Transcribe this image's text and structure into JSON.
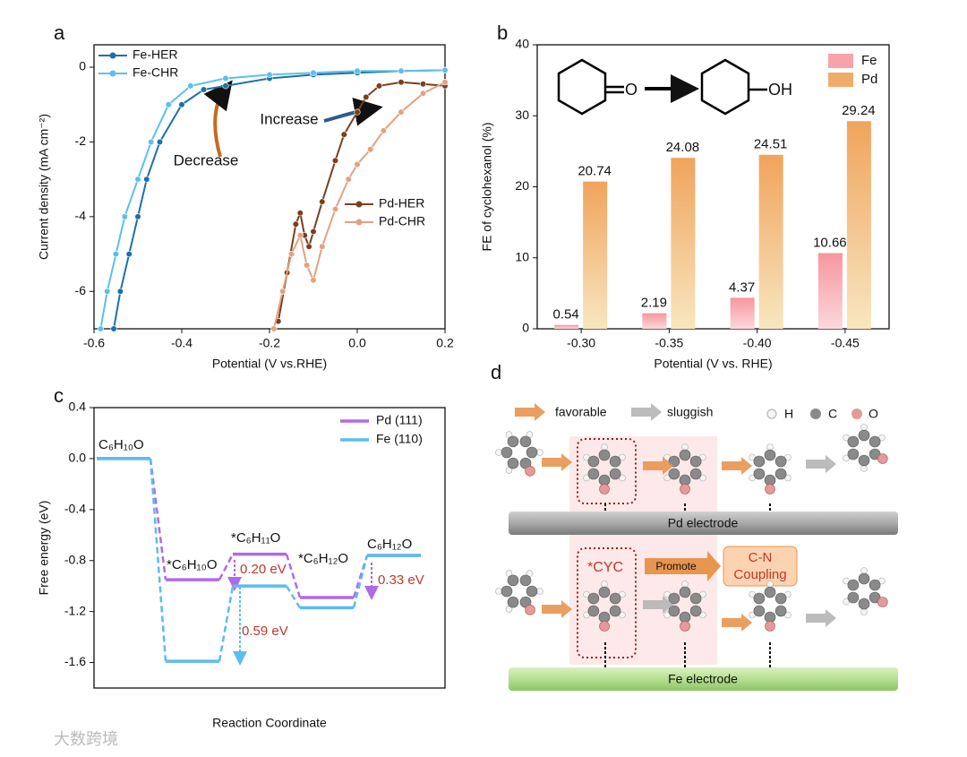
{
  "chart_data": [
    {
      "panel": "a",
      "type": "line",
      "xlabel": "Potential (V vs.RHE)",
      "ylabel": "Current density (mA cm⁻²)",
      "xlim": [
        -0.6,
        0.2
      ],
      "ylim": [
        -7,
        0.6
      ],
      "xticks": [
        -0.6,
        -0.4,
        -0.2,
        {
          "value": 0,
          "label": "0.0"
        },
        0.2
      ],
      "yticks": [
        0,
        -2,
        -4,
        -6
      ],
      "annotations": [
        "Decrease",
        "Increase"
      ],
      "series": [
        {
          "name": "Fe-HER",
          "color": "#1f6fa8",
          "x": [
            -0.555,
            -0.54,
            -0.52,
            -0.5,
            -0.48,
            -0.45,
            -0.4,
            -0.35,
            -0.3,
            -0.2,
            -0.1,
            0,
            0.1,
            0.2
          ],
          "values": [
            -7,
            -6,
            -5,
            -4,
            -3,
            -2,
            -1,
            -0.6,
            -0.5,
            -0.3,
            -0.2,
            -0.15,
            -0.1,
            -0.08
          ]
        },
        {
          "name": "Fe-CHR",
          "color": "#5bc0eb",
          "x": [
            -0.585,
            -0.57,
            -0.55,
            -0.53,
            -0.5,
            -0.47,
            -0.43,
            -0.38,
            -0.3,
            -0.2,
            -0.1,
            0,
            0.1,
            0.2
          ],
          "values": [
            -7,
            -6,
            -5,
            -4,
            -3,
            -2,
            -1,
            -0.5,
            -0.3,
            -0.2,
            -0.15,
            -0.1,
            -0.1,
            -0.08
          ]
        },
        {
          "name": "Pd-HER",
          "color": "#7a3f1e",
          "x": [
            -0.18,
            -0.16,
            -0.14,
            -0.13,
            -0.12,
            -0.11,
            -0.1,
            -0.08,
            -0.05,
            -0.03,
            0,
            0.02,
            0.05,
            0.1,
            0.15,
            0.2
          ],
          "values": [
            -6.8,
            -5.5,
            -4.2,
            -3.9,
            -4.5,
            -4.8,
            -4.4,
            -3.6,
            -2.5,
            -1.8,
            -1.2,
            -0.8,
            -0.5,
            -0.4,
            -0.45,
            -0.5
          ]
        },
        {
          "name": "Pd-CHR",
          "color": "#e3a27f",
          "x": [
            -0.19,
            -0.17,
            -0.15,
            -0.13,
            -0.115,
            -0.1,
            -0.08,
            -0.05,
            -0.02,
            0,
            0.03,
            0.06,
            0.1,
            0.15,
            0.2
          ],
          "values": [
            -7,
            -6,
            -5,
            -4.5,
            -5.3,
            -5.7,
            -4.8,
            -3.8,
            -3,
            -2.6,
            -2.2,
            -1.7,
            -1.2,
            -0.7,
            -0.4
          ]
        }
      ]
    },
    {
      "panel": "b",
      "type": "bar",
      "xlabel": "Potential (V vs. RHE)",
      "ylabel": "FE of cyclohexanol (%)",
      "categories": [
        "-0.30",
        "-0.35",
        "-0.40",
        "-0.45"
      ],
      "ylim": [
        0,
        40
      ],
      "yticks": [
        0,
        10,
        20,
        30,
        40
      ],
      "scheme": [
        "O",
        "OH"
      ],
      "series": [
        {
          "name": "Fe",
          "color": "#f7a3aa",
          "values": [
            0.54,
            2.19,
            4.37,
            10.66
          ]
        },
        {
          "name": "Pd",
          "color": "#f0ad6a",
          "values": [
            20.74,
            24.08,
            24.51,
            29.24
          ]
        }
      ]
    },
    {
      "panel": "c",
      "type": "step",
      "xlabel": "Reaction Coordinate",
      "ylabel": "Free energy (eV)",
      "ylim": [
        -1.8,
        0.4
      ],
      "yticks": [
        0.4,
        {
          "value": 0,
          "label": "0.0"
        },
        -0.4,
        -0.8,
        -1.2,
        -1.6
      ],
      "categories": [
        "C₆H₁₀O",
        "*C₆H₁₀O",
        "*C₆H₁₁O",
        "*C₆H₁₂O",
        "C₆H₁₂O"
      ],
      "annotations": [
        "0.20 eV",
        "0.59 eV",
        "0.33 eV"
      ],
      "series": [
        {
          "name": "Pd (111)",
          "color": "#b06ae6",
          "values": [
            0,
            -0.95,
            -0.75,
            -1.09,
            -0.76
          ]
        },
        {
          "name": "Fe (110)",
          "color": "#5bbcf0",
          "values": [
            0,
            -1.59,
            -1.0,
            -1.17,
            -0.76
          ]
        }
      ]
    }
  ],
  "diagram": {
    "panel": "d",
    "arrows": [
      "favorable",
      "sluggish"
    ],
    "atoms": [
      "H",
      "C",
      "O"
    ],
    "electrodes": [
      "Pd electrode",
      "Fe electrode"
    ],
    "intermediate": "*CYC",
    "promote": "Promote",
    "product": [
      "C-N",
      "Coupling"
    ]
  },
  "watermark": "大数跨境"
}
